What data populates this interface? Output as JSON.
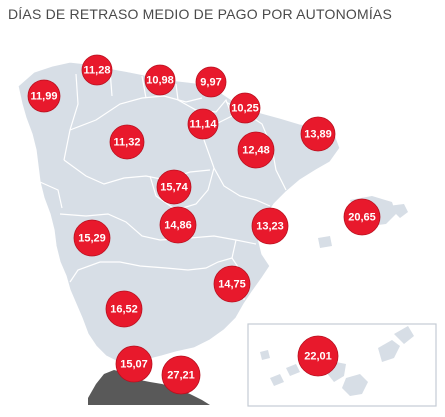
{
  "title": "DÍAS DE RETRASO MEDIO DE PAGO POR AUTONOMÍAS",
  "colors": {
    "land": "#d7dee6",
    "border": "#ffffff",
    "inset_border": "#c5ccd4",
    "bubble": "#e8192c",
    "bubble_edge": "#b8101f",
    "africa": "#595959",
    "title": "#4a4a4a"
  },
  "regions": [
    {
      "id": "galicia",
      "value": "11,99"
    },
    {
      "id": "asturias",
      "value": "11,28"
    },
    {
      "id": "cantabria",
      "value": "10,98"
    },
    {
      "id": "pais-vasco",
      "value": "9,97"
    },
    {
      "id": "navarra",
      "value": "10,25"
    },
    {
      "id": "la-rioja",
      "value": "11,14"
    },
    {
      "id": "castilla-leon",
      "value": "11,32"
    },
    {
      "id": "aragon",
      "value": "12,48"
    },
    {
      "id": "cataluna",
      "value": "13,89"
    },
    {
      "id": "madrid",
      "value": "15,74"
    },
    {
      "id": "castilla-la-mancha",
      "value": "14,86"
    },
    {
      "id": "comunidad-valenciana",
      "value": "13,23"
    },
    {
      "id": "baleares",
      "value": "20,65"
    },
    {
      "id": "extremadura",
      "value": "15,29"
    },
    {
      "id": "murcia",
      "value": "14,75"
    },
    {
      "id": "andalucia",
      "value": "16,52"
    },
    {
      "id": "ceuta",
      "value": "15,07"
    },
    {
      "id": "melilla",
      "value": "27,21"
    },
    {
      "id": "canarias",
      "value": "22,01"
    }
  ]
}
